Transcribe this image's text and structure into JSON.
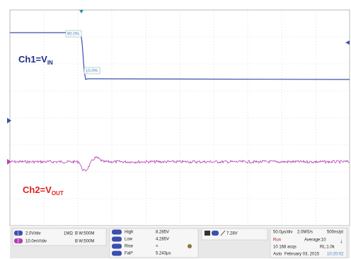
{
  "trace_labels": {
    "ch1_level_high": "90.0%",
    "ch1_level_low": "10.0%",
    "ch1_name": "Ch1=V",
    "ch1_sub": "IN",
    "ch2_name": "Ch2=V",
    "ch2_sub": "OUT"
  },
  "channels": [
    {
      "badge": "1",
      "scale": "2.0V/div",
      "coupling": "1MΩ",
      "bandwidth": "B W:500M"
    },
    {
      "badge": "2",
      "scale": "10.0mV/div",
      "coupling": "",
      "bandwidth": "B W:500M"
    }
  ],
  "measurements": [
    {
      "label": "High",
      "value": "8.285V"
    },
    {
      "label": "Low",
      "value": "4.285V"
    },
    {
      "label": "Rise",
      "value": "<"
    },
    {
      "label": "Fall*",
      "value": "5.243µs"
    }
  ],
  "trigger": {
    "level": "7.28V"
  },
  "acquisition": {
    "timebase": "50.0µs/div",
    "sample_rate": "2.0MS/s",
    "resolution": "500ns/pt",
    "state": "Run",
    "mode": "Average:10",
    "acqs": "10 168 acqs",
    "record": "RL:1.0k",
    "trigger_mode": "Auto",
    "date": "February 03, 2015",
    "time": "10:20:02"
  }
}
